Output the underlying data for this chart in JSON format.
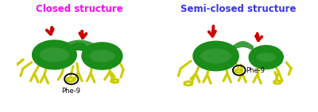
{
  "title_left": "Closed structure",
  "title_right": "Semi-closed structure",
  "title_left_color": "#FF00FF",
  "title_right_color": "#3333EE",
  "title_fontsize": 8.5,
  "label_left": "Phe-9",
  "label_right": "Phe-9",
  "label_fontsize": 6.0,
  "bg_color": "#FFFFFF",
  "helix_color": "#1A8C1A",
  "helix_dark": "#0F5A0F",
  "helix_light": "#22BB22",
  "side_chain_color": "#CCCC00",
  "red_chain_color": "#CC0000",
  "circle_color": "#000000",
  "fig_width": 4.0,
  "fig_height": 1.42
}
